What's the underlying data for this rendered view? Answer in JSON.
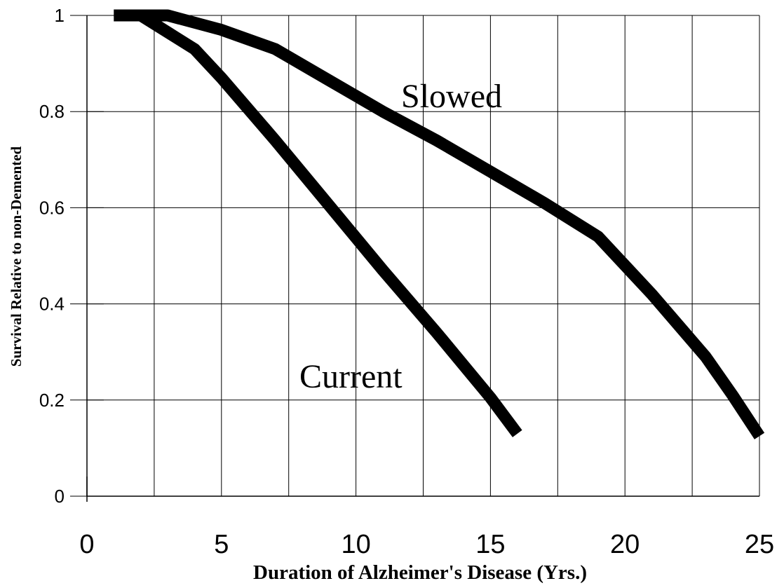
{
  "chart_data": {
    "type": "line",
    "title": "",
    "xlabel": "Duration of Alzheimer's Disease (Yrs.)",
    "ylabel": "Survival Relative to non-Demented",
    "xlim": [
      0,
      25
    ],
    "ylim": [
      0,
      1
    ],
    "x_ticks": [
      "0",
      "5",
      "10",
      "15",
      "20",
      "25"
    ],
    "y_ticks": [
      "0",
      "0.2",
      "0.4",
      "0.6",
      "0.8",
      "1"
    ],
    "grid": true,
    "legend": "none",
    "line_color": "#000000",
    "series": [
      {
        "name": "Current",
        "x": [
          1,
          2,
          3,
          4,
          5,
          7,
          9,
          11,
          13,
          15,
          16
        ],
        "y": [
          1.0,
          1.0,
          0.965,
          0.93,
          0.87,
          0.74,
          0.605,
          0.47,
          0.34,
          0.205,
          0.13
        ]
      },
      {
        "name": "Slowed",
        "x": [
          1,
          3,
          5,
          7,
          9,
          11,
          13,
          15,
          17,
          19,
          21,
          23,
          24,
          25
        ],
        "y": [
          1.0,
          1.0,
          0.97,
          0.93,
          0.865,
          0.8,
          0.74,
          0.675,
          0.61,
          0.54,
          0.42,
          0.29,
          0.21,
          0.125
        ]
      }
    ]
  }
}
